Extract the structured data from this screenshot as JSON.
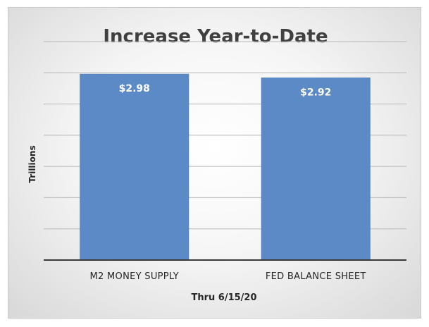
{
  "chart_data": {
    "type": "bar",
    "title": "Increase Year-to-Date",
    "xlabel": "Thru 6/15/20",
    "ylabel": "Trillions",
    "categories": [
      "M2 MONEY SUPPLY",
      "FED BALANCE SHEET"
    ],
    "values": [
      2.98,
      2.92
    ],
    "data_labels": [
      "$2.98",
      "$2.92"
    ],
    "ylim": [
      0,
      3.5
    ],
    "gridlines": true,
    "legend": "none",
    "colors": {
      "bar": "#5b8ac6",
      "bar_edge": "#4a78b4",
      "gridline": "#b8b8b8",
      "axis": "#3a3a3a"
    }
  }
}
